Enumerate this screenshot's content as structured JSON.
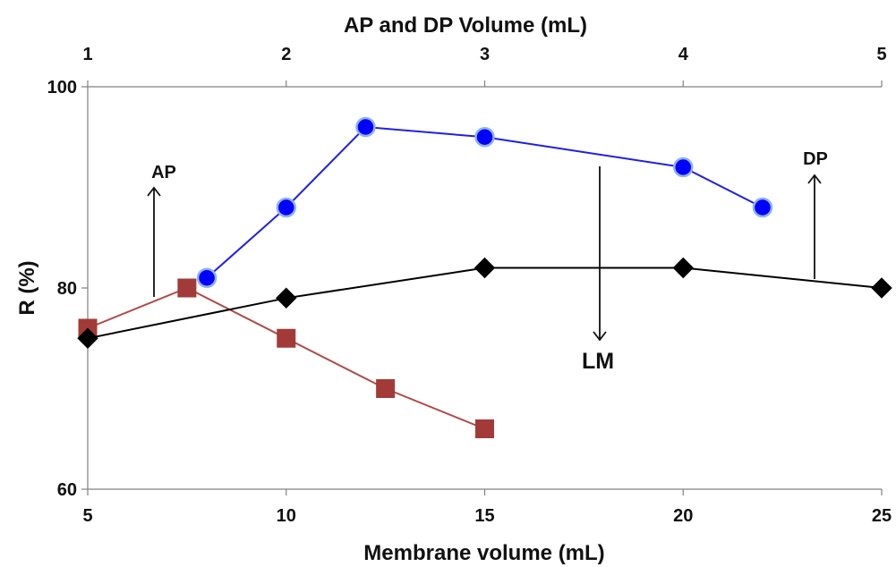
{
  "chart_data": {
    "type": "line",
    "title": "",
    "xlabel": "Membrane volume (mL)",
    "x2label": "AP and DP Volume (mL)",
    "ylabel": "R (%)",
    "xlim": [
      5,
      25
    ],
    "x2lim": [
      1,
      5
    ],
    "ylim": [
      60,
      100
    ],
    "xticks": [
      "5",
      "10",
      "15",
      "20",
      "25"
    ],
    "x2ticks": [
      "1",
      "2",
      "3",
      "4",
      "5"
    ],
    "yticks": [
      "60",
      "80",
      "100"
    ],
    "grid": false,
    "series": [
      {
        "key": "lm",
        "axis": "bottom",
        "color": "#1f1fe6",
        "marker": "circle",
        "marker_fill": "#0000ff",
        "marker_edge": "#8fb3e6",
        "points": [
          [
            8,
            81
          ],
          [
            10,
            88
          ],
          [
            12,
            96
          ],
          [
            15,
            95
          ],
          [
            20,
            92
          ],
          [
            22,
            88
          ]
        ]
      },
      {
        "key": "ap",
        "axis": "top",
        "color": "#b04a47",
        "marker": "square",
        "marker_fill": "#a23b38",
        "marker_edge": "#a23b38",
        "points": [
          [
            1,
            76
          ],
          [
            1.5,
            80
          ],
          [
            2,
            75
          ],
          [
            2.5,
            70
          ],
          [
            3,
            66
          ]
        ]
      },
      {
        "key": "dp",
        "axis": "top",
        "color": "#000000",
        "marker": "diamond",
        "marker_fill": "#000000",
        "marker_edge": "#000000",
        "points": [
          [
            1,
            75
          ],
          [
            2,
            79
          ],
          [
            3,
            82
          ],
          [
            4,
            82
          ],
          [
            5,
            80
          ]
        ]
      }
    ],
    "annotations": [
      {
        "key": "ap",
        "text": "AP",
        "size": "small",
        "arrow": "up"
      },
      {
        "key": "lm",
        "text": "LM",
        "size": "large",
        "arrow": "down"
      },
      {
        "key": "dp",
        "text": "DP",
        "size": "small",
        "arrow": "up"
      }
    ]
  }
}
